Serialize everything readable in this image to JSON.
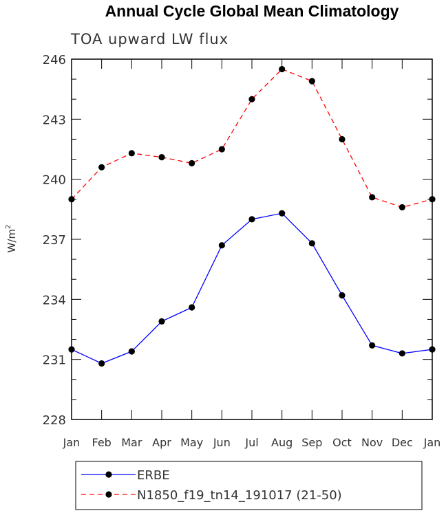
{
  "chart_data": {
    "type": "line",
    "title": "Annual Cycle Global Mean Climatology",
    "subtitle": "TOA upward LW flux",
    "ylabel": "W/m",
    "ylabel_sup": "2",
    "xlabel": "",
    "categories": [
      "Jan",
      "Feb",
      "Mar",
      "Apr",
      "May",
      "Jun",
      "Jul",
      "Aug",
      "Sep",
      "Oct",
      "Nov",
      "Dec",
      "Jan"
    ],
    "ylim": [
      228,
      246
    ],
    "yticks": [
      "228",
      "231",
      "234",
      "237",
      "240",
      "243",
      "246"
    ],
    "grid": false,
    "legend_position": "bottom",
    "series": [
      {
        "name": "ERBE",
        "color": "#0000ff",
        "style": "solid",
        "values": [
          231.5,
          230.8,
          231.4,
          232.9,
          233.6,
          236.7,
          238.0,
          238.3,
          236.8,
          234.2,
          231.7,
          231.3,
          231.5
        ]
      },
      {
        "name": "N1850_f19_tn14_191017 (21-50)",
        "color": "#ff0000",
        "style": "dashed",
        "values": [
          239.0,
          240.6,
          241.3,
          241.1,
          240.8,
          241.5,
          244.0,
          245.5,
          244.9,
          242.0,
          239.1,
          238.6,
          239.0
        ]
      }
    ]
  }
}
